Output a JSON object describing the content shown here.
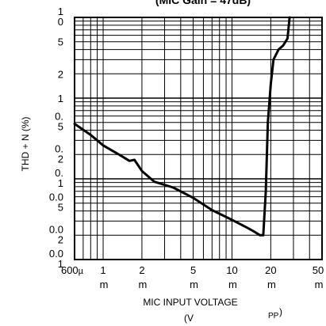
{
  "chart_data": {
    "type": "line",
    "title": "(MIC Gain = 47dB)",
    "xlabel": "MIC INPUT VOLTAGE",
    "xlabel_unit": "(V",
    "xlabel_sub": "PP",
    "xlabel_paren": ")",
    "ylabel": "THD + N (%)",
    "x_scale": "log",
    "y_scale": "log",
    "xlim": [
      "600µ",
      "50m"
    ],
    "ylim": [
      0.01,
      10
    ],
    "grid": true,
    "x_tick_labels": [
      {
        "top": "600",
        "mu": "µ",
        "bottom": ""
      },
      {
        "top": "1",
        "bottom": "m"
      },
      {
        "top": "2",
        "bottom": "m"
      },
      {
        "top": "5",
        "bottom": "m"
      },
      {
        "top": "10",
        "bottom": "m"
      },
      {
        "top": "20",
        "bottom": "m"
      },
      {
        "top": "50",
        "bottom": "m"
      }
    ],
    "y_tick_labels": [
      "1\n0",
      "5",
      "2",
      "1",
      "0.\n5",
      "0.\n2",
      "0.\n1",
      "0.0\n5",
      "0.0\n2",
      "0.0\n1"
    ],
    "series": [
      {
        "x": [
          "600µ",
          "800µ",
          "1m",
          "1.4m",
          "1.6m",
          "1.75m",
          "2m",
          "2.5m",
          "3.5m",
          "5m",
          "7m",
          "10m",
          "13m",
          "15m",
          "16.5m",
          "17.5m",
          "18.3m",
          "19m",
          "20m",
          "21m",
          "23m",
          "25m",
          "27m",
          "28m"
        ],
        "values": [
          0.48,
          0.35,
          0.26,
          0.19,
          0.167,
          0.172,
          0.125,
          0.092,
          0.078,
          0.058,
          0.041,
          0.031,
          0.025,
          0.022,
          0.02,
          0.02,
          0.07,
          0.5,
          1.5,
          3.0,
          4.0,
          4.5,
          5.5,
          10
        ]
      }
    ]
  }
}
